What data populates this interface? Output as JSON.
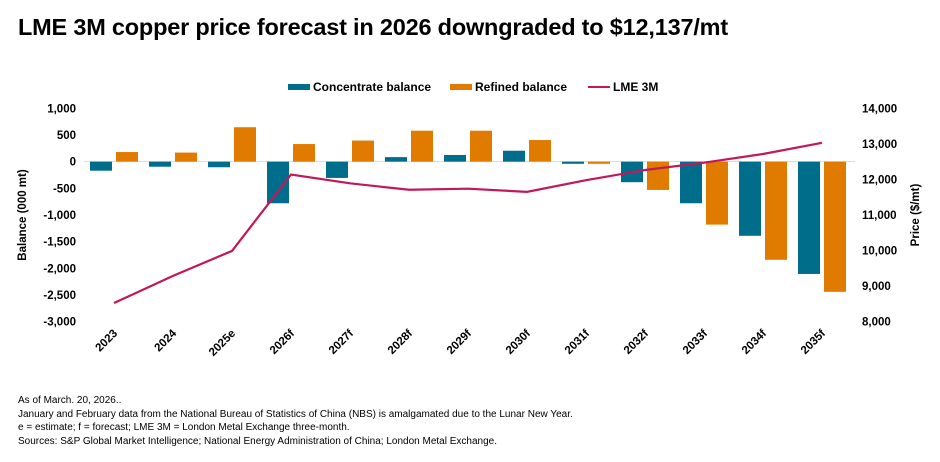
{
  "title": "LME 3M copper price forecast in 2026 downgraded to $12,137/mt",
  "chart_data": {
    "type": "bar+line",
    "categories": [
      "2023",
      "2024",
      "2025e",
      "2026f",
      "2027f",
      "2028f",
      "2029f",
      "2030f",
      "2031f",
      "2032f",
      "2033f",
      "2034f",
      "2035f"
    ],
    "series": [
      {
        "name": "Concentrate balance",
        "type": "bar",
        "axis": "left",
        "color": "#006d8a",
        "values": [
          -170,
          -95,
          -105,
          -780,
          -305,
          85,
          125,
          205,
          -40,
          -385,
          -780,
          -1390,
          -2105
        ]
      },
      {
        "name": "Refined balance",
        "type": "bar",
        "axis": "left",
        "color": "#e07b00",
        "values": [
          180,
          170,
          645,
          330,
          395,
          580,
          580,
          405,
          -40,
          -530,
          -1180,
          -1840,
          -2440
        ]
      },
      {
        "name": "LME 3M",
        "type": "line",
        "axis": "right",
        "color": "#c2185b",
        "values": [
          8525,
          9290,
          9990,
          12137,
          11890,
          11710,
          11740,
          11650,
          11980,
          12265,
          12470,
          12715,
          13030
        ]
      }
    ],
    "ylabel": "Balance (000 mt)",
    "ylabel_right": "Price ($/mt)",
    "ylim": [
      -3000,
      1000
    ],
    "ylim_right": [
      8000,
      14000
    ],
    "yticks": [
      "1,000",
      "500",
      "0",
      "-500",
      "-1,000",
      "-1,500",
      "-2,000",
      "-2,500",
      "-3,000"
    ],
    "yticks_right": [
      "14,000",
      "13,000",
      "12,000",
      "11,000",
      "10,000",
      "9,000",
      "8,000"
    ],
    "grid": false,
    "legend_placement": "top"
  },
  "notes": [
    "As of March. 20, 2026..",
    "January and February data from the National Bureau of Statistics of China (NBS) is amalgamated due to the Lunar New Year.",
    "e = estimate; f = forecast; LME 3M = London Metal Exchange three-month.",
    "Sources: S&P Global Market Intelligence; National Energy Administration of China; London Metal Exchange."
  ]
}
